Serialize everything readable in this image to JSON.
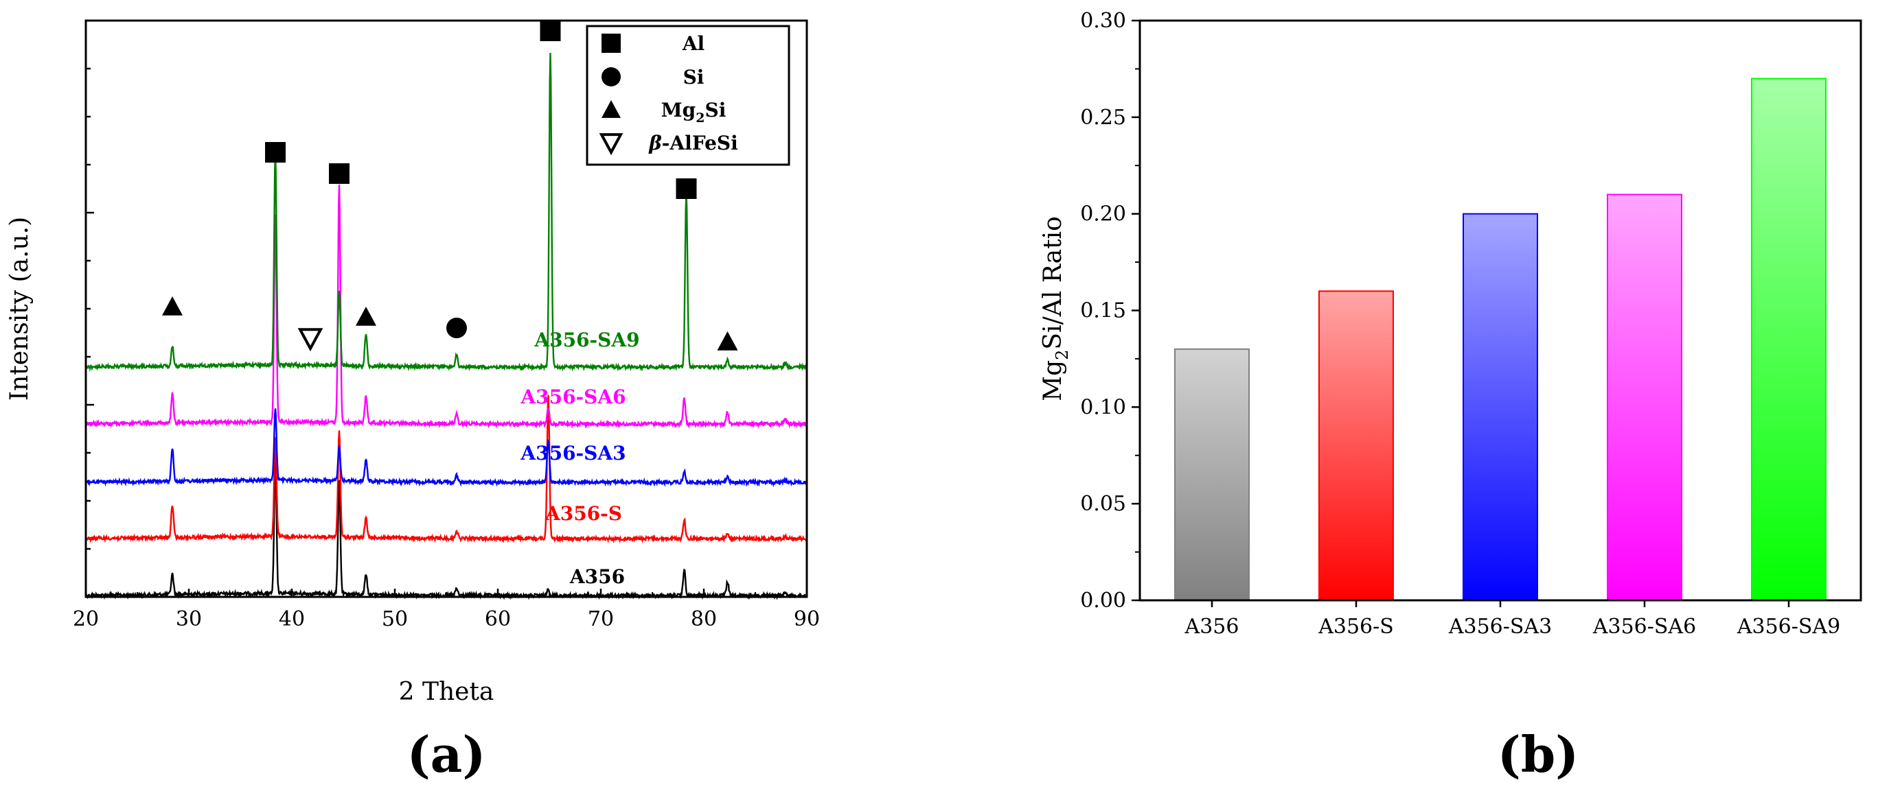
{
  "chart_data": [
    {
      "type": "line",
      "panel_label": "(a)",
      "xlabel": "2 Theta",
      "ylabel": "Intensity (a.u.)",
      "xlim": [
        20,
        90
      ],
      "x_ticks": [
        "20",
        "30",
        "40",
        "50",
        "60",
        "70",
        "80",
        "90"
      ],
      "y_ticks_labeled": false,
      "series": [
        {
          "name": "A356",
          "color": "#000000",
          "baseline_offset": 0,
          "peaks": [
            [
              28.4,
              30
            ],
            [
              38.4,
              195
            ],
            [
              44.6,
              165
            ],
            [
              47.2,
              30
            ],
            [
              56.0,
              10
            ],
            [
              64.9,
              10
            ],
            [
              78.1,
              38
            ],
            [
              82.3,
              20
            ],
            [
              87.9,
              4
            ]
          ]
        },
        {
          "name": "A356-S",
          "color": "#ff0000",
          "baseline_offset": 1,
          "peaks": [
            [
              28.4,
              48
            ],
            [
              38.4,
              145
            ],
            [
              44.6,
              155
            ],
            [
              47.2,
              28
            ],
            [
              56.0,
              12
            ],
            [
              64.9,
              210
            ],
            [
              78.1,
              28
            ],
            [
              82.3,
              8
            ],
            [
              87.9,
              4
            ]
          ]
        },
        {
          "name": "A356-SA3",
          "color": "#0000ff",
          "baseline_offset": 2,
          "peaks": [
            [
              28.4,
              48
            ],
            [
              38.4,
              105
            ],
            [
              44.6,
              52
            ],
            [
              47.2,
              32
            ],
            [
              56.0,
              10
            ],
            [
              64.9,
              62
            ],
            [
              78.1,
              16
            ],
            [
              82.3,
              10
            ],
            [
              87.9,
              4
            ]
          ]
        },
        {
          "name": "A356-SA6",
          "color": "#ff00ff",
          "baseline_offset": 3,
          "peaks": [
            [
              28.4,
              42
            ],
            [
              38.4,
              300
            ],
            [
              44.6,
              345
            ],
            [
              47.2,
              40
            ],
            [
              56.0,
              14
            ],
            [
              64.9,
              22
            ],
            [
              78.1,
              38
            ],
            [
              82.3,
              18
            ],
            [
              87.9,
              6
            ]
          ]
        },
        {
          "name": "A356-SA9",
          "color": "#008000",
          "baseline_offset": 4,
          "peaks": [
            [
              28.4,
              28
            ],
            [
              38.4,
              310
            ],
            [
              44.6,
              110
            ],
            [
              47.2,
              48
            ],
            [
              56.0,
              18
            ],
            [
              65.1,
              460
            ],
            [
              78.3,
              255
            ],
            [
              82.3,
              10
            ],
            [
              87.9,
              6
            ]
          ]
        }
      ],
      "legend": {
        "position": "top-right",
        "entries": [
          {
            "marker": "square",
            "label": "Al"
          },
          {
            "marker": "circle",
            "label": "Si"
          },
          {
            "marker": "triangle",
            "label": "Mg",
            "subscript": "2",
            "suffix": "Si"
          },
          {
            "marker": "inverted-triangle",
            "label": "β-AlFeSi"
          }
        ]
      },
      "phase_markers": [
        {
          "phase": "Al",
          "marker": "square",
          "x": 38.4
        },
        {
          "phase": "Al",
          "marker": "square",
          "x": 44.6
        },
        {
          "phase": "Al",
          "marker": "square",
          "x": 65.1
        },
        {
          "phase": "Al",
          "marker": "square",
          "x": 78.3
        },
        {
          "phase": "Si",
          "marker": "circle",
          "x": 56.0
        },
        {
          "phase": "Mg2Si",
          "marker": "triangle",
          "x": 28.4
        },
        {
          "phase": "Mg2Si",
          "marker": "triangle",
          "x": 47.2
        },
        {
          "phase": "Mg2Si",
          "marker": "triangle",
          "x": 82.3
        },
        {
          "phase": "β-AlFeSi",
          "marker": "inverted-triangle",
          "x": 41.8
        }
      ]
    },
    {
      "type": "bar",
      "panel_label": "(b)",
      "categories": [
        "A356",
        "A356-S",
        "A356-SA3",
        "A356-SA6",
        "A356-SA9"
      ],
      "values": [
        0.13,
        0.16,
        0.2,
        0.21,
        0.27
      ],
      "colors": [
        "#808080",
        "#ff0000",
        "#0000ff",
        "#ff00ff",
        "#00ff00"
      ],
      "ylabel_prefix": "Mg",
      "ylabel_sub": "2",
      "ylabel_suffix": "Si/Al Ratio",
      "xlabel": "",
      "ylim": [
        0,
        0.3
      ],
      "y_ticks": [
        "0.00",
        "0.05",
        "0.10",
        "0.15",
        "0.20",
        "0.25",
        "0.30"
      ]
    }
  ]
}
